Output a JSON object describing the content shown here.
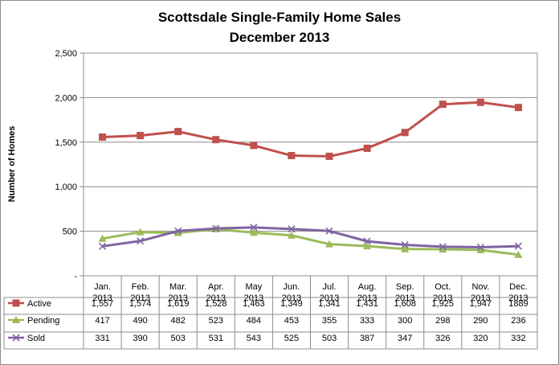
{
  "chart_data": {
    "type": "line",
    "title": [
      "Scottsdale Single-Family Home Sales",
      "December 2013"
    ],
    "ylabel": "Number of Homes",
    "xlabel": "",
    "ylim": [
      0,
      2500
    ],
    "yticks": [
      {
        "value": 0,
        "label": "-"
      },
      {
        "value": 500,
        "label": "500"
      },
      {
        "value": 1000,
        "label": "1,000"
      },
      {
        "value": 1500,
        "label": "1,500"
      },
      {
        "value": 2000,
        "label": "2,000"
      },
      {
        "value": 2500,
        "label": "2,500"
      }
    ],
    "grid": true,
    "legend": "data-table",
    "categories": [
      [
        "Jan.",
        "2013"
      ],
      [
        "Feb.",
        "2013"
      ],
      [
        "Mar.",
        "2013"
      ],
      [
        "Apr.",
        "2013"
      ],
      [
        "May",
        "2013"
      ],
      [
        "Jun.",
        "2013"
      ],
      [
        "Jul.",
        "2013"
      ],
      [
        "Aug.",
        "2013"
      ],
      [
        "Sep.",
        "2013"
      ],
      [
        "Oct.",
        "2013"
      ],
      [
        "Nov.",
        "2013"
      ],
      [
        "Dec.",
        "2013"
      ]
    ],
    "series": [
      {
        "name": "Active",
        "color": "#c0504d",
        "marker": "square",
        "values": [
          1557,
          1574,
          1619,
          1528,
          1463,
          1349,
          1341,
          1431,
          1608,
          1925,
          1947,
          1889
        ],
        "labels": [
          "1,557",
          "1,574",
          "1,619",
          "1,528",
          "1,463",
          "1,349",
          "1,341",
          "1,431",
          "1,608",
          "1,925",
          "1,947",
          "1889"
        ]
      },
      {
        "name": "Pending",
        "color": "#9bbb59",
        "marker": "triangle",
        "values": [
          417,
          490,
          482,
          523,
          484,
          453,
          355,
          333,
          300,
          298,
          290,
          236
        ],
        "labels": [
          "417",
          "490",
          "482",
          "523",
          "484",
          "453",
          "355",
          "333",
          "300",
          "298",
          "290",
          "236"
        ]
      },
      {
        "name": "Sold",
        "color": "#8064a2",
        "marker": "x",
        "values": [
          331,
          390,
          503,
          531,
          543,
          525,
          503,
          387,
          347,
          326,
          320,
          332
        ],
        "labels": [
          "331",
          "390",
          "503",
          "531",
          "543",
          "525",
          "503",
          "387",
          "347",
          "326",
          "320",
          "332"
        ]
      }
    ]
  }
}
